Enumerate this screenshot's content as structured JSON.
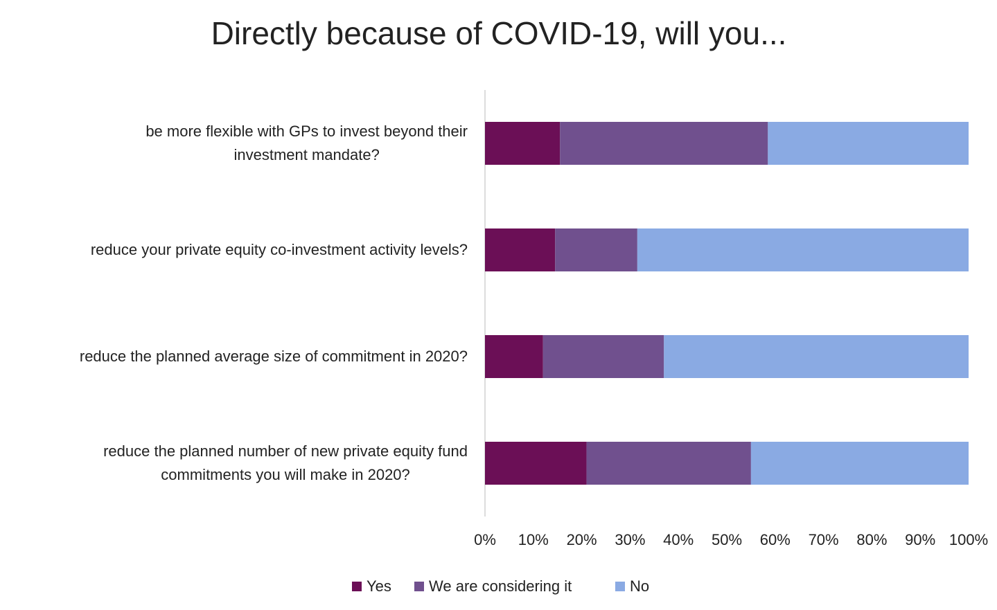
{
  "chart_data": {
    "type": "stacked_barh",
    "title": "Directly because of COVID-19, will you...",
    "categories": [
      "be more flexible with GPs to invest beyond their\ninvestment mandate?",
      "reduce your private equity co-investment activity levels?",
      "reduce the planned average size of commitment in 2020?",
      "reduce the planned number of new private equity fund\ncommitments you will make in 2020?"
    ],
    "series": [
      {
        "name": "Yes",
        "color": "#6b0f56",
        "values": [
          15.5,
          14.5,
          12,
          21
        ]
      },
      {
        "name": "We are considering it",
        "color": "#70508e",
        "values": [
          43,
          17,
          25,
          34
        ]
      },
      {
        "name": "No",
        "color": "#8aaae3",
        "values": [
          41.5,
          68.5,
          63,
          45
        ]
      }
    ],
    "xlim": [
      0,
      100
    ],
    "xticks": [
      {
        "value": 0,
        "label": "0%"
      },
      {
        "value": 10,
        "label": "10%"
      },
      {
        "value": 20,
        "label": "20%"
      },
      {
        "value": 30,
        "label": "30%"
      },
      {
        "value": 40,
        "label": "40%"
      },
      {
        "value": 50,
        "label": "50%"
      },
      {
        "value": 60,
        "label": "60%"
      },
      {
        "value": 70,
        "label": "70%"
      },
      {
        "value": 80,
        "label": "80%"
      },
      {
        "value": 90,
        "label": "90%"
      },
      {
        "value": 100,
        "label": "100%"
      }
    ],
    "legend": "bottom"
  }
}
